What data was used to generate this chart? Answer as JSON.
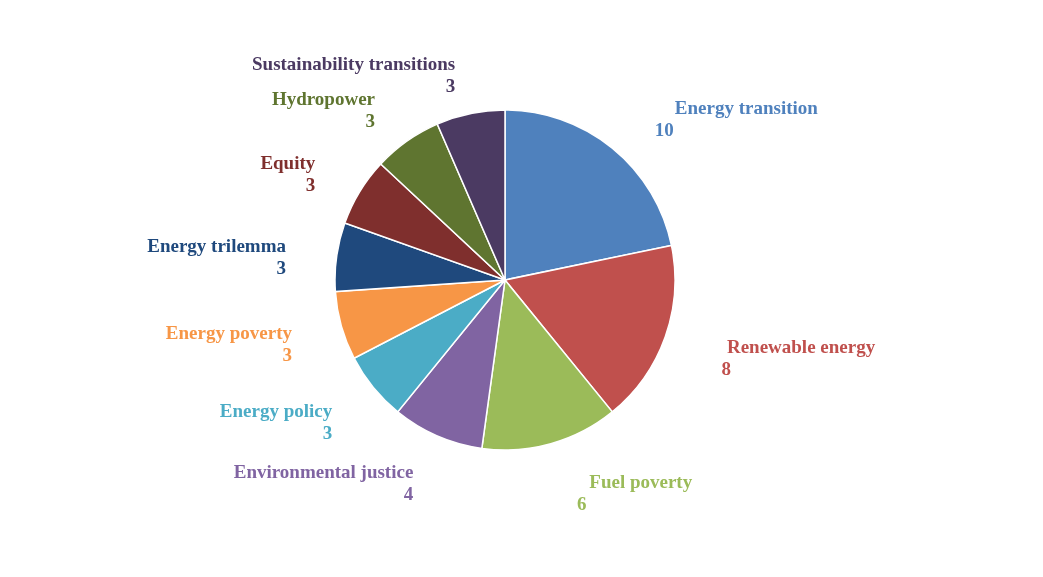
{
  "chart_data": {
    "type": "pie",
    "categories": [
      "Energy transition",
      "Renewable energy",
      "Fuel poverty",
      "Environmental justice",
      "Energy policy",
      "Energy poverty",
      "Energy trilemma",
      "Equity",
      "Hydropower",
      "Sustainability transitions"
    ],
    "values": [
      10,
      8,
      6,
      4,
      3,
      3,
      3,
      3,
      3,
      3
    ],
    "colors": [
      "#4f81bd",
      "#c0504d",
      "#9bbb59",
      "#8064a2",
      "#4bacc6",
      "#f79646",
      "#1f497d",
      "#7f2f2d",
      "#5f7530",
      "#4b3a62"
    ],
    "data_labels": true,
    "legend": false
  }
}
